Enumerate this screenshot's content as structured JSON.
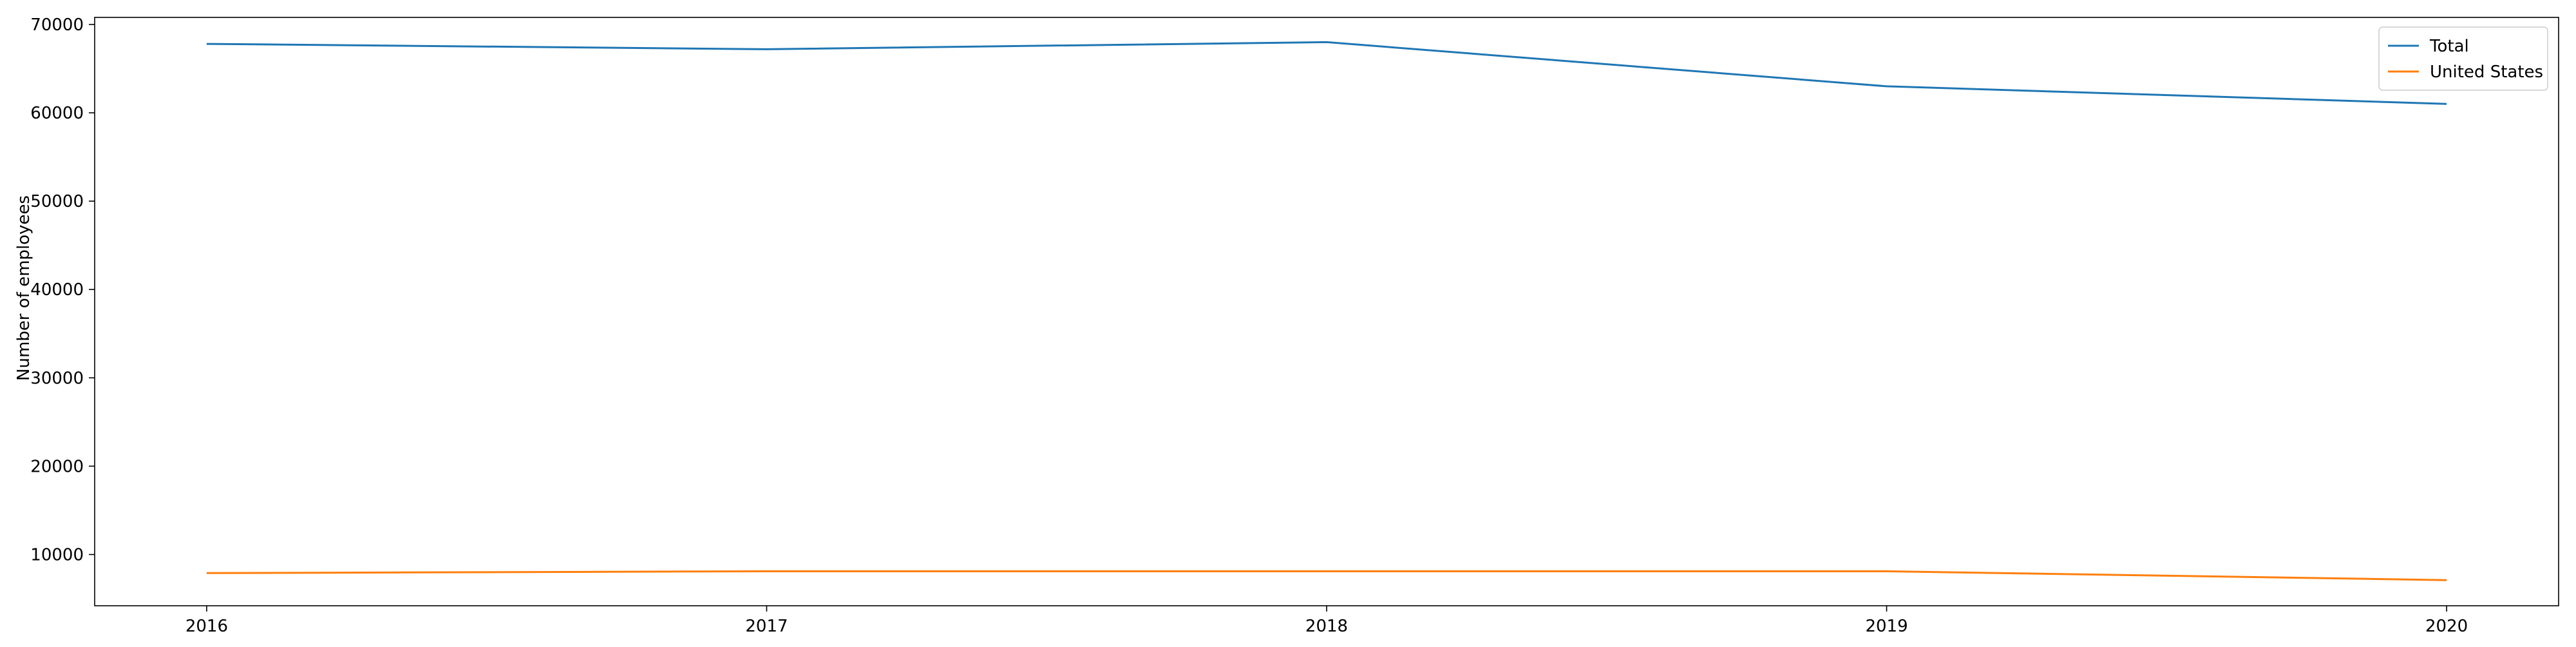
{
  "chart_data": {
    "type": "line",
    "title": "",
    "xlabel": "",
    "ylabel": "Number of employees",
    "x": [
      2016,
      2017,
      2018,
      2019,
      2020
    ],
    "xlim": [
      2015.8,
      2020.2
    ],
    "ylim": [
      4200,
      70800
    ],
    "yticks": [
      10000,
      20000,
      30000,
      40000,
      50000,
      60000,
      70000
    ],
    "grid": false,
    "legend_position": "top-right",
    "series": [
      {
        "name": "Total",
        "color": "#1f77b4",
        "values": [
          67800,
          67200,
          68000,
          63000,
          61000
        ]
      },
      {
        "name": "United States",
        "color": "#ff7f0e",
        "values": [
          7900,
          8100,
          8100,
          8100,
          7100
        ]
      }
    ]
  }
}
